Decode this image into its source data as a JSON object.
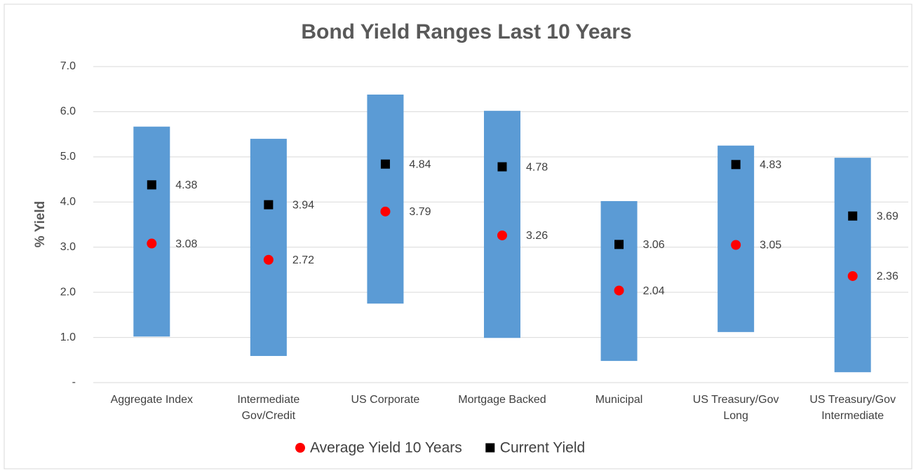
{
  "chart_data": {
    "type": "floating_bar",
    "title": "Bond Yield Ranges Last 10 Years",
    "y_label": "% Yield",
    "categories": [
      [
        "Aggregate Index"
      ],
      [
        "Intermediate",
        "Gov/Credit"
      ],
      [
        "US Corporate"
      ],
      [
        "Mortgage Backed"
      ],
      [
        "Municipal"
      ],
      [
        "US Treasury/Gov",
        "Long"
      ],
      [
        "US Treasury/Gov",
        "Intermediate"
      ]
    ],
    "ranges": {
      "color": "#5b9bd5",
      "low": [
        1.02,
        0.59,
        1.75,
        0.99,
        0.48,
        1.12,
        0.23
      ],
      "high": [
        5.67,
        5.4,
        6.38,
        6.02,
        4.02,
        5.25,
        4.98
      ]
    },
    "series": [
      {
        "name": "Average Yield 10 Years",
        "color": "#ff0000",
        "marker": "circle",
        "values": [
          3.08,
          2.72,
          3.79,
          3.26,
          2.04,
          3.05,
          2.36
        ]
      },
      {
        "name": "Current Yield",
        "color": "#000000",
        "marker": "square",
        "values": [
          4.38,
          3.94,
          4.84,
          4.78,
          3.06,
          4.83,
          3.69
        ]
      }
    ],
    "ylim": [
      0,
      7
    ],
    "yticks": [
      {
        "value": 0,
        "label": "-"
      },
      {
        "value": 1,
        "label": "1.0"
      },
      {
        "value": 2,
        "label": "2.0"
      },
      {
        "value": 3,
        "label": "3.0"
      },
      {
        "value": 4,
        "label": "4.0"
      },
      {
        "value": 5,
        "label": "5.0"
      },
      {
        "value": 6,
        "label": "6.0"
      },
      {
        "value": 7,
        "label": "7.0"
      }
    ],
    "grid": true,
    "legend": "bottom"
  }
}
